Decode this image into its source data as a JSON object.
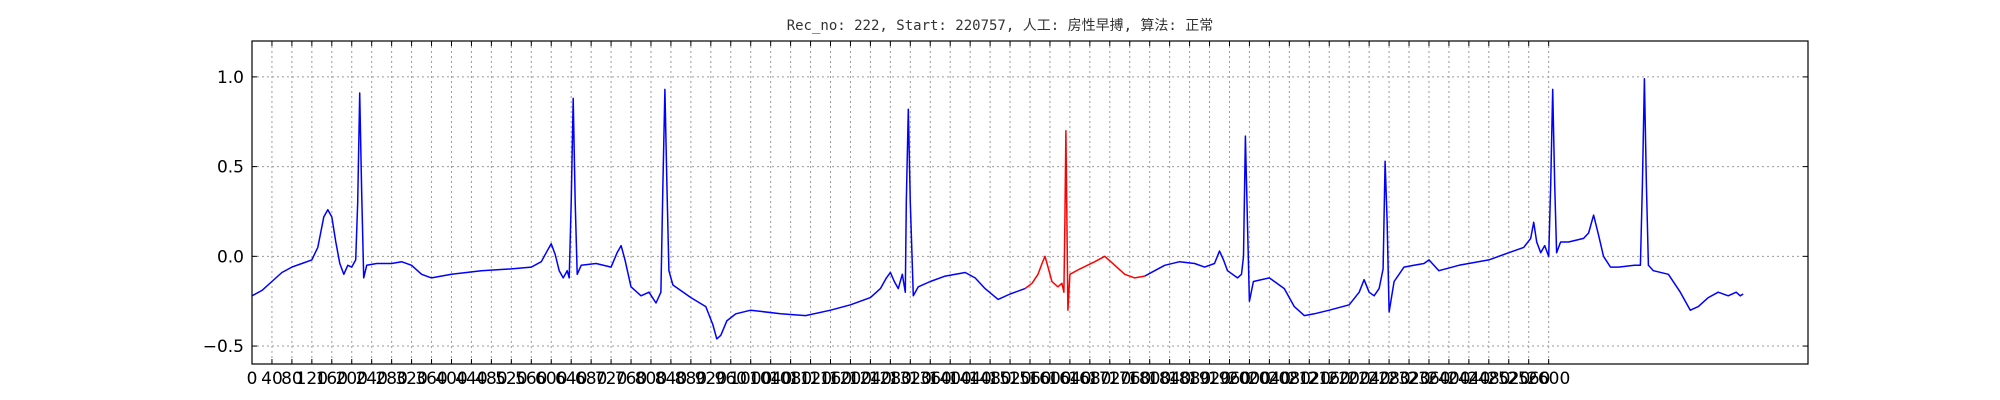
{
  "chart_data": {
    "type": "line",
    "title": "Rec_no: 222, Start: 220757, 人工: 房性早搏, 算法: 正常",
    "xlabel": "",
    "ylabel": "",
    "xlim": [
      0,
      1560
    ],
    "ylim": [
      -0.6,
      1.2
    ],
    "grid": true,
    "yticks": [
      -0.5,
      0.0,
      0.5,
      1.0
    ],
    "ytick_labels": [
      "−0.5",
      "0.0",
      "0.5",
      "1.0"
    ],
    "xtick_step": 20,
    "xtick_labels": [
      "0",
      "40",
      "80",
      "120",
      "160",
      "200",
      "240",
      "280",
      "320",
      "360",
      "400",
      "440",
      "480",
      "520",
      "560",
      "600",
      "640",
      "680",
      "720",
      "760",
      "800",
      "840",
      "880",
      "920",
      "960",
      "1000",
      "1040",
      "1080",
      "1120",
      "1160",
      "1200",
      "1240",
      "1280",
      "1320",
      "1360",
      "1400",
      "1440",
      "1480",
      "1520",
      "1560",
      "1600",
      "1640",
      "1680",
      "1720",
      "1760",
      "1800",
      "1840",
      "1880",
      "1920",
      "1960",
      "2000",
      "2040",
      "2080",
      "2120",
      "2160",
      "2200",
      "2240",
      "2280",
      "2320",
      "2360",
      "2400",
      "2440",
      "2480",
      "2520",
      "2560",
      "2600"
    ],
    "colors": {
      "normal": "#0000ff",
      "highlight": "#ff0000"
    },
    "series": [
      {
        "role": "normal",
        "values": [
          [
            0,
            -0.22
          ],
          [
            10,
            -0.19
          ],
          [
            20,
            -0.14
          ],
          [
            30,
            -0.09
          ],
          [
            40,
            -0.06
          ],
          [
            50,
            -0.04
          ],
          [
            60,
            -0.02
          ],
          [
            66,
            0.05
          ],
          [
            72,
            0.22
          ],
          [
            76,
            0.26
          ],
          [
            80,
            0.22
          ],
          [
            84,
            0.08
          ],
          [
            88,
            -0.04
          ],
          [
            92,
            -0.1
          ],
          [
            96,
            -0.05
          ],
          [
            100,
            -0.06
          ],
          [
            104,
            -0.02
          ],
          [
            106,
            0.3
          ],
          [
            108,
            0.91
          ],
          [
            110,
            0.35
          ],
          [
            112,
            -0.12
          ],
          [
            115,
            -0.05
          ],
          [
            125,
            -0.04
          ],
          [
            140,
            -0.04
          ],
          [
            150,
            -0.03
          ],
          [
            160,
            -0.05
          ],
          [
            170,
            -0.1
          ],
          [
            180,
            -0.12
          ],
          [
            200,
            -0.1
          ],
          [
            230,
            -0.08
          ],
          [
            260,
            -0.07
          ],
          [
            280,
            -0.06
          ],
          [
            290,
            -0.03
          ],
          [
            295,
            0.02
          ],
          [
            300,
            0.07
          ],
          [
            304,
            0.01
          ],
          [
            308,
            -0.08
          ],
          [
            312,
            -0.12
          ],
          [
            316,
            -0.08
          ],
          [
            318,
            -0.12
          ],
          [
            320,
            0.3
          ],
          [
            322,
            0.88
          ],
          [
            324,
            0.3
          ],
          [
            326,
            -0.1
          ],
          [
            330,
            -0.05
          ],
          [
            345,
            -0.04
          ],
          [
            360,
            -0.06
          ],
          [
            366,
            0.02
          ],
          [
            370,
            0.06
          ],
          [
            374,
            -0.02
          ],
          [
            380,
            -0.17
          ],
          [
            390,
            -0.22
          ],
          [
            398,
            -0.2
          ],
          [
            405,
            -0.26
          ],
          [
            410,
            -0.2
          ],
          [
            412,
            0.4
          ],
          [
            414,
            0.93
          ],
          [
            416,
            0.4
          ],
          [
            418,
            -0.08
          ],
          [
            422,
            -0.16
          ],
          [
            440,
            -0.23
          ],
          [
            455,
            -0.28
          ],
          [
            462,
            -0.38
          ],
          [
            466,
            -0.46
          ],
          [
            470,
            -0.44
          ],
          [
            476,
            -0.36
          ],
          [
            485,
            -0.32
          ],
          [
            500,
            -0.3
          ],
          [
            530,
            -0.32
          ],
          [
            555,
            -0.33
          ],
          [
            580,
            -0.3
          ],
          [
            600,
            -0.27
          ],
          [
            620,
            -0.23
          ],
          [
            630,
            -0.18
          ],
          [
            636,
            -0.12
          ],
          [
            640,
            -0.09
          ],
          [
            644,
            -0.14
          ],
          [
            648,
            -0.18
          ],
          [
            652,
            -0.1
          ],
          [
            655,
            -0.2
          ],
          [
            656,
            0.3
          ],
          [
            658,
            0.82
          ],
          [
            660,
            0.3
          ],
          [
            663,
            -0.22
          ],
          [
            668,
            -0.17
          ],
          [
            680,
            -0.14
          ],
          [
            695,
            -0.11
          ],
          [
            715,
            -0.09
          ],
          [
            725,
            -0.12
          ],
          [
            735,
            -0.18
          ],
          [
            748,
            -0.24
          ],
          [
            760,
            -0.21
          ],
          [
            775,
            -0.18
          ]
        ]
      },
      {
        "role": "highlight",
        "values": [
          [
            775,
            -0.18
          ],
          [
            782,
            -0.15
          ],
          [
            788,
            -0.1
          ],
          [
            792,
            -0.04
          ],
          [
            795,
            0.0
          ],
          [
            798,
            -0.06
          ],
          [
            802,
            -0.14
          ],
          [
            808,
            -0.17
          ],
          [
            812,
            -0.15
          ],
          [
            814,
            -0.2
          ],
          [
            815,
            0.2
          ],
          [
            816,
            0.7
          ],
          [
            817,
            0.2
          ],
          [
            818,
            -0.3
          ],
          [
            820,
            -0.1
          ],
          [
            830,
            -0.07
          ],
          [
            845,
            -0.03
          ],
          [
            855,
            0.0
          ],
          [
            865,
            -0.05
          ],
          [
            875,
            -0.1
          ],
          [
            885,
            -0.12
          ],
          [
            895,
            -0.11
          ]
        ]
      },
      {
        "role": "normal",
        "values": [
          [
            895,
            -0.11
          ],
          [
            905,
            -0.08
          ],
          [
            915,
            -0.05
          ],
          [
            930,
            -0.03
          ],
          [
            945,
            -0.04
          ],
          [
            955,
            -0.06
          ],
          [
            965,
            -0.04
          ],
          [
            970,
            0.03
          ],
          [
            974,
            -0.02
          ],
          [
            978,
            -0.08
          ],
          [
            988,
            -0.12
          ],
          [
            992,
            -0.1
          ],
          [
            994,
            0.0
          ],
          [
            996,
            0.67
          ],
          [
            998,
            0.2
          ],
          [
            1000,
            -0.25
          ],
          [
            1004,
            -0.14
          ],
          [
            1020,
            -0.12
          ],
          [
            1035,
            -0.18
          ],
          [
            1045,
            -0.28
          ],
          [
            1055,
            -0.33
          ],
          [
            1065,
            -0.32
          ],
          [
            1080,
            -0.3
          ],
          [
            1100,
            -0.27
          ],
          [
            1110,
            -0.2
          ],
          [
            1115,
            -0.13
          ],
          [
            1120,
            -0.2
          ],
          [
            1125,
            -0.22
          ],
          [
            1130,
            -0.18
          ],
          [
            1134,
            -0.07
          ],
          [
            1136,
            0.53
          ],
          [
            1138,
            0.2
          ],
          [
            1140,
            -0.31
          ],
          [
            1145,
            -0.14
          ],
          [
            1155,
            -0.06
          ],
          [
            1165,
            -0.05
          ],
          [
            1175,
            -0.04
          ],
          [
            1180,
            -0.02
          ],
          [
            1190,
            -0.08
          ],
          [
            1210,
            -0.05
          ],
          [
            1240,
            -0.02
          ],
          [
            1260,
            0.02
          ],
          [
            1275,
            0.05
          ],
          [
            1282,
            0.1
          ],
          [
            1285,
            0.19
          ],
          [
            1288,
            0.08
          ],
          [
            1292,
            0.02
          ],
          [
            1296,
            0.06
          ],
          [
            1300,
            0.0
          ],
          [
            1302,
            0.4
          ],
          [
            1304,
            0.93
          ],
          [
            1306,
            0.4
          ],
          [
            1308,
            0.02
          ],
          [
            1312,
            0.08
          ],
          [
            1320,
            0.08
          ],
          [
            1335,
            0.1
          ],
          [
            1340,
            0.13
          ],
          [
            1345,
            0.23
          ],
          [
            1350,
            0.12
          ],
          [
            1355,
            0.0
          ],
          [
            1362,
            -0.06
          ],
          [
            1370,
            -0.06
          ],
          [
            1386,
            -0.05
          ],
          [
            1392,
            -0.05
          ],
          [
            1394,
            0.4
          ],
          [
            1396,
            0.99
          ],
          [
            1398,
            0.4
          ],
          [
            1400,
            -0.05
          ],
          [
            1405,
            -0.08
          ],
          [
            1420,
            -0.1
          ],
          [
            1432,
            -0.2
          ],
          [
            1442,
            -0.3
          ],
          [
            1450,
            -0.28
          ],
          [
            1460,
            -0.23
          ],
          [
            1470,
            -0.2
          ],
          [
            1480,
            -0.22
          ],
          [
            1488,
            -0.2
          ],
          [
            1492,
            -0.22
          ],
          [
            1495,
            -0.21
          ]
        ]
      }
    ]
  }
}
